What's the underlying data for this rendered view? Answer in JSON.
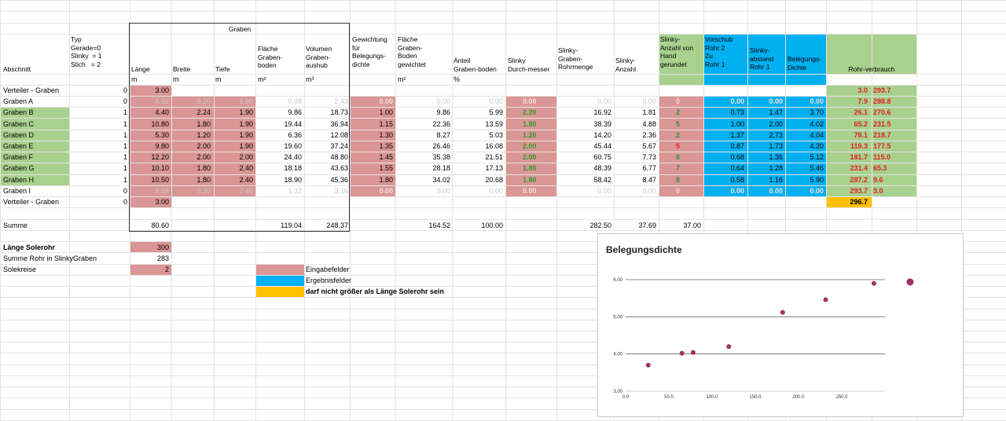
{
  "header_top": {
    "graben_group": "Graben"
  },
  "headers": {
    "abschnitt": "Abschnitt",
    "typ": "Typ\nGerade=0\nSlinky  = 1\nStich   = 2",
    "laenge": "Länge",
    "breite": "Breite",
    "tiefe": "Tiefe",
    "flaeche": "Fläche\nGraben-\nboden",
    "volumen": "Volumen\nGraben-\naushub",
    "gewichtung": "Gewichtung\nfür\nBelegungs-\ndichte",
    "flaeche_gew": "Fläche\nGraben-\nBoden\ngewichtet",
    "anteil": "Anteil\nGraben-boden",
    "durchmesser": "Slinky\nDurch-messer",
    "rohrmenge": "Slinky-\nGraben-\nRohrmenge",
    "anzahl": "Slinky-\nAnzahl",
    "anzahl_hand": "Slinky-\nAnzahl von\nHand\ngerundet",
    "vorschub": "Vorschub\nRohr 2\nZu\nRohr 1",
    "abstand": "Slinky-\nabstand\nRohr 1",
    "dichte": "Belegungs-\nDichte",
    "rohrverbrauch": "Rohr-verbrauch"
  },
  "units": {
    "laenge": "m",
    "breite": "m",
    "tiefe": "m",
    "flaeche": "m²",
    "volumen": "m³",
    "flaeche_gew": "m²",
    "anteil": "%"
  },
  "rows": [
    {
      "name": "Verteiler - Graben",
      "typ": "0",
      "laenge": "3.00",
      "rv1": "3.0",
      "rv2": "293.7"
    },
    {
      "name": "Graben A",
      "typ": "0",
      "laenge": "4.92",
      "breite": "0.20",
      "tiefe": "1.90",
      "flaeche": "0.98",
      "volumen": "2.43",
      "gew": "0.00",
      "fgew": "0.00",
      "anteil": "0.00",
      "durch": "0.00",
      "menge": "0.00",
      "anzahl": "0.00",
      "hand": "0",
      "vorschub": "0.00",
      "abstand": "0.00",
      "dichte": "0.00",
      "rv1": "7.9",
      "rv2": "288.8",
      "faded": true
    },
    {
      "name": "Graben B",
      "typ": "1",
      "laenge": "4.40",
      "breite": "2.24",
      "tiefe": "1.90",
      "flaeche": "9.86",
      "volumen": "18.73",
      "gew": "1.00",
      "fgew": "9.86",
      "anteil": "5.99",
      "durch": "2.20",
      "menge": "16.92",
      "anzahl": "1.81",
      "hand": "2",
      "vorschub": "0.73",
      "abstand": "1.47",
      "dichte": "3.70",
      "rv1": "26.1",
      "rv2": "270.6"
    },
    {
      "name": "Graben C",
      "typ": "1",
      "laenge": "10.80",
      "breite": "1.80",
      "tiefe": "1.90",
      "flaeche": "19.44",
      "volumen": "36.94",
      "gew": "1.15",
      "fgew": "22.36",
      "anteil": "13.59",
      "durch": "1.80",
      "menge": "38.39",
      "anzahl": "4.88",
      "hand": "5",
      "vorschub": "1.00",
      "abstand": "2.00",
      "dichte": "4.02",
      "rv1": "65.2",
      "rv2": "231.5"
    },
    {
      "name": "Graben D",
      "typ": "1",
      "laenge": "5.30",
      "breite": "1.20",
      "tiefe": "1.90",
      "flaeche": "6.36",
      "volumen": "12.08",
      "gew": "1.30",
      "fgew": "8.27",
      "anteil": "5.03",
      "durch": "1.20",
      "menge": "14.20",
      "anzahl": "2.36",
      "hand": "2",
      "vorschub": "1.37",
      "abstand": "2.73",
      "dichte": "4.04",
      "rv1": "78.1",
      "rv2": "218.7"
    },
    {
      "name": "Graben E",
      "typ": "1",
      "laenge": "9.80",
      "breite": "2.00",
      "tiefe": "1.90",
      "flaeche": "19.60",
      "volumen": "37.24",
      "gew": "1.35",
      "fgew": "26.46",
      "anteil": "16.08",
      "durch": "2.00",
      "menge": "45.44",
      "anzahl": "5.67",
      "hand": "5",
      "handred": true,
      "vorschub": "0.87",
      "abstand": "1.73",
      "dichte": "4.20",
      "rv1": "119.3",
      "rv2": "177.5"
    },
    {
      "name": "Graben F",
      "typ": "1",
      "laenge": "12.20",
      "breite": "2.00",
      "tiefe": "2.00",
      "flaeche": "24.40",
      "volumen": "48.80",
      "gew": "1.45",
      "fgew": "35.38",
      "anteil": "21.51",
      "durch": "2.00",
      "menge": "60.75",
      "anzahl": "7.73",
      "hand": "8",
      "vorschub": "0.68",
      "abstand": "1.36",
      "dichte": "5.12",
      "rv1": "181.7",
      "rv2": "115.0"
    },
    {
      "name": "Graben G",
      "typ": "1",
      "laenge": "10.10",
      "breite": "1.80",
      "tiefe": "2.40",
      "flaeche": "18.18",
      "volumen": "43.63",
      "gew": "1.55",
      "fgew": "28.18",
      "anteil": "17.13",
      "durch": "1.80",
      "menge": "48.39",
      "anzahl": "6.77",
      "hand": "7",
      "vorschub": "0.64",
      "abstand": "1.28",
      "dichte": "5.46",
      "rv1": "231.4",
      "rv2": "65.3"
    },
    {
      "name": "Graben H",
      "typ": "1",
      "laenge": "10.50",
      "breite": "1.80",
      "tiefe": "2.40",
      "flaeche": "18.90",
      "volumen": "45.36",
      "gew": "1.80",
      "fgew": "34.02",
      "anteil": "20.68",
      "durch": "1.80",
      "menge": "58.42",
      "anzahl": "8.47",
      "hand": "8",
      "vorschub": "0.58",
      "abstand": "1.16",
      "dichte": "5.90",
      "rv1": "287.2",
      "rv2": "9.6"
    },
    {
      "name": "Graben I",
      "typ": "0",
      "laenge": "6.58",
      "breite": "0.20",
      "tiefe": "2.40",
      "flaeche": "1.32",
      "volumen": "3.16",
      "gew": "0.00",
      "fgew": "0.00",
      "anteil": "0.00",
      "durch": "0.00",
      "menge": "0.00",
      "anzahl": "0.00",
      "hand": "0",
      "vorschub": "0.00",
      "abstand": "0.00",
      "dichte": "0.00",
      "rv1": "293.7",
      "rv2": "3.0",
      "faded": true
    },
    {
      "name": "Verteiler - Graben",
      "typ": "0",
      "laenge": "3.00",
      "rv1": "296.7",
      "rv_yellow": true
    }
  ],
  "summe": {
    "label": "Summe",
    "laenge": "80.60",
    "flaeche": "119.04",
    "volumen": "248.37",
    "fgew": "164.52",
    "anteil": "100.00",
    "menge": "282.50",
    "anzahl": "37.69",
    "hand": "37.00"
  },
  "extra": {
    "laenge_solerohr_label": "Länge Solerohr",
    "laenge_solerohr_value": "300",
    "summe_rohr_label": "Summe Rohr in SlinkyGraben",
    "summe_rohr_value": "283",
    "solekreise_label": "Solekreise",
    "solekreise_value": "2"
  },
  "legend": {
    "eingabe": "Eingabefelder",
    "ergebnis": "Ergebnisfelder",
    "warnung": "darf nicht größer als Länge Solerohr sein"
  },
  "colors": {
    "input": "#da9694",
    "result": "#00b0f0",
    "green": "#a9d18e",
    "yellow": "#ffc000"
  },
  "chart_data": {
    "type": "scatter",
    "title": "Belegungsdichte",
    "xlim": [
      0,
      300
    ],
    "ylim": [
      3,
      6
    ],
    "xticks": [
      "0.0",
      "50.0",
      "100.0",
      "150.0",
      "200.0",
      "250.0"
    ],
    "yticks": [
      "3.00",
      "4.00",
      "5.00",
      "6.00"
    ],
    "points": [
      {
        "x": 26.1,
        "y": 3.7
      },
      {
        "x": 65.2,
        "y": 4.02
      },
      {
        "x": 78.1,
        "y": 4.04
      },
      {
        "x": 119.3,
        "y": 4.2
      },
      {
        "x": 181.7,
        "y": 5.12
      },
      {
        "x": 231.4,
        "y": 5.46
      },
      {
        "x": 287.2,
        "y": 5.9
      }
    ],
    "legend_marker": true,
    "color": "#a0306a"
  }
}
